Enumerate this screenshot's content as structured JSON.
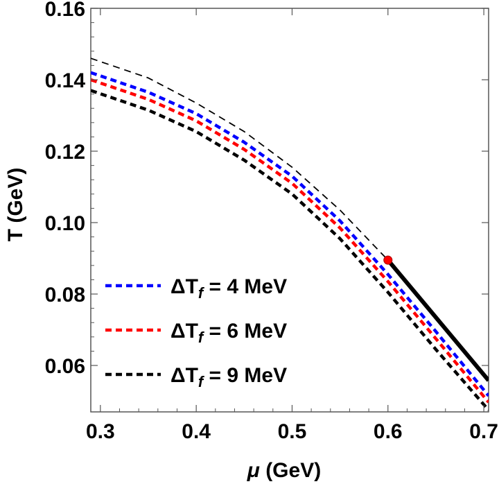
{
  "chart_data": {
    "type": "line",
    "title": "",
    "xlabel_symbol": "μ",
    "xlabel_unit": " (GeV)",
    "ylabel": "T (GeV)",
    "xlim": [
      0.29,
      0.705
    ],
    "ylim": [
      0.047,
      0.16
    ],
    "xticks": [
      0.3,
      0.4,
      0.5,
      0.6,
      0.7
    ],
    "xtick_labels": [
      "0.3",
      "0.4",
      "0.5",
      "0.6",
      "0.7"
    ],
    "yticks": [
      0.06,
      0.08,
      0.1,
      0.12,
      0.14,
      0.16
    ],
    "ytick_labels": [
      "0.06",
      "0.08",
      "0.10",
      "0.12",
      "0.14",
      "0.16"
    ],
    "grid": false,
    "legend_position": "bottom-left",
    "series": [
      {
        "name": "ΔT_f = 4 MeV",
        "label_main": "ΔT",
        "label_sub": "f",
        "label_rest": " = 4 MeV",
        "color": "#0000ff",
        "style": "dashed",
        "legend": true,
        "x": [
          0.29,
          0.35,
          0.4,
          0.45,
          0.5,
          0.55,
          0.6,
          0.65,
          0.705
        ],
        "y": [
          0.142,
          0.1365,
          0.1305,
          0.1225,
          0.113,
          0.1005,
          0.0855,
          0.0695,
          0.0515
        ]
      },
      {
        "name": "ΔT_f = 6 MeV",
        "label_main": "ΔT",
        "label_sub": "f",
        "label_rest": " = 6 MeV",
        "color": "#ff0000",
        "style": "dashed",
        "legend": true,
        "x": [
          0.29,
          0.35,
          0.4,
          0.45,
          0.5,
          0.55,
          0.6,
          0.65,
          0.705
        ],
        "y": [
          0.14,
          0.1345,
          0.1285,
          0.1205,
          0.111,
          0.0985,
          0.0835,
          0.0675,
          0.0497
        ]
      },
      {
        "name": "ΔT_f = 9 MeV",
        "label_main": "ΔT",
        "label_sub": "f",
        "label_rest": " = 9 MeV",
        "color": "#000000",
        "style": "dashed",
        "legend": true,
        "x": [
          0.29,
          0.35,
          0.4,
          0.45,
          0.5,
          0.55,
          0.6,
          0.65,
          0.705
        ],
        "y": [
          0.137,
          0.1315,
          0.1255,
          0.1175,
          0.108,
          0.0955,
          0.0805,
          0.0645,
          0.0475
        ]
      },
      {
        "name": "crossover (thin dashed)",
        "color": "#000000",
        "style": "thin-dashed",
        "legend": false,
        "x": [
          0.29,
          0.35,
          0.4,
          0.45,
          0.5,
          0.55,
          0.6
        ],
        "y": [
          0.146,
          0.1405,
          0.1335,
          0.1255,
          0.1155,
          0.1035,
          0.0895
        ]
      },
      {
        "name": "first-order line",
        "color": "#000000",
        "style": "solid-thick",
        "legend": false,
        "x": [
          0.6,
          0.705
        ],
        "y": [
          0.0895,
          0.0558
        ]
      }
    ],
    "critical_point": {
      "x": 0.6,
      "y": 0.0895,
      "color": "#ff0000"
    }
  }
}
